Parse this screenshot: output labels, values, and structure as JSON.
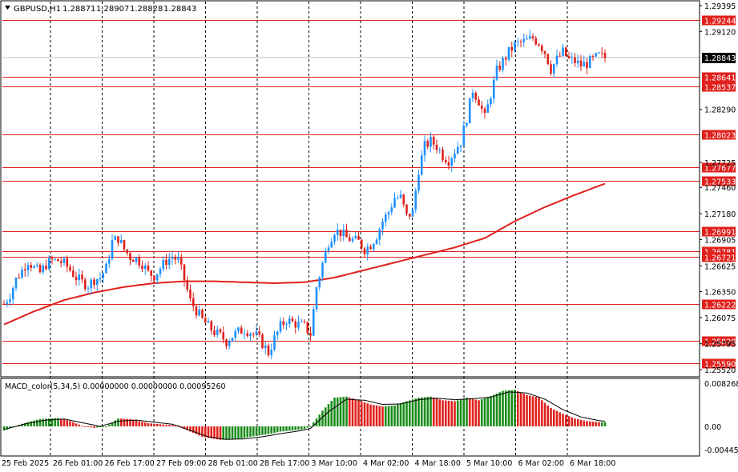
{
  "chart_data": {
    "type": "candlestick",
    "symbol_header": {
      "symbol": "GBPUSD,H1",
      "open": "1.28871",
      "high": "1.28907",
      "low": "1.28828",
      "close": "1.28843"
    },
    "current_price": "1.28843",
    "ylim": [
      1.2552,
      1.29395
    ],
    "price_axis_ticks": [
      "1.29395",
      "1.29120",
      "1.28290",
      "1.27725",
      "1.27460",
      "1.27180",
      "1.26905",
      "1.26625",
      "1.26350",
      "1.26075",
      "1.25795",
      "1.25520"
    ],
    "horizontal_levels": [
      {
        "value": 1.29244,
        "label": "1.29244"
      },
      {
        "value": 1.28641,
        "label": "1.28641"
      },
      {
        "value": 1.28537,
        "label": "1.28537"
      },
      {
        "value": 1.28023,
        "label": "1.28023"
      },
      {
        "value": 1.27677,
        "label": "1.27677"
      },
      {
        "value": 1.27533,
        "label": "1.27533"
      },
      {
        "value": 1.26991,
        "label": "1.26991"
      },
      {
        "value": 1.26781,
        "label": "1.26781"
      },
      {
        "value": 1.26721,
        "label": "1.26721"
      },
      {
        "value": 1.26222,
        "label": "1.26222"
      },
      {
        "value": 1.25828,
        "label": "1.25828"
      },
      {
        "value": 1.2559,
        "label": "1.25590"
      }
    ],
    "time_labels": [
      "25 Feb 2025",
      "26 Feb 01:00",
      "26 Feb 17:00",
      "27 Feb 09:00",
      "28 Feb 01:00",
      "28 Feb 17:00",
      "3 Mar 10:00",
      "4 Mar 02:00",
      "4 Mar 18:00",
      "5 Mar 10:00",
      "6 Mar 02:00",
      "6 Mar 18:00"
    ],
    "price_path": [
      [
        0,
        1.2622
      ],
      [
        2,
        1.2632
      ],
      [
        4,
        1.2648
      ],
      [
        6,
        1.2658
      ],
      [
        8,
        1.2668
      ],
      [
        10,
        1.266
      ],
      [
        12,
        1.2655
      ],
      [
        14,
        1.2664
      ],
      [
        16,
        1.2668
      ],
      [
        18,
        1.2668
      ],
      [
        20,
        1.2665
      ],
      [
        22,
        1.2658
      ],
      [
        24,
        1.265
      ],
      [
        26,
        1.2645
      ],
      [
        28,
        1.2642
      ],
      [
        30,
        1.2648
      ],
      [
        32,
        1.265
      ],
      [
        34,
        1.266
      ],
      [
        36,
        1.2688
      ],
      [
        38,
        1.2692
      ],
      [
        40,
        1.268
      ],
      [
        42,
        1.2672
      ],
      [
        44,
        1.267
      ],
      [
        46,
        1.2665
      ],
      [
        48,
        1.2655
      ],
      [
        50,
        1.2652
      ],
      [
        52,
        1.266
      ],
      [
        54,
        1.2668
      ],
      [
        56,
        1.2672
      ],
      [
        58,
        1.2668
      ],
      [
        60,
        1.2648
      ],
      [
        62,
        1.2625
      ],
      [
        64,
        1.2615
      ],
      [
        66,
        1.2605
      ],
      [
        68,
        1.2598
      ],
      [
        70,
        1.2592
      ],
      [
        72,
        1.2588
      ],
      [
        74,
        1.2582
      ],
      [
        76,
        1.2588
      ],
      [
        78,
        1.2592
      ],
      [
        80,
        1.2595
      ],
      [
        82,
        1.2592
      ],
      [
        84,
        1.2588
      ],
      [
        86,
        1.258
      ],
      [
        88,
        1.257
      ],
      [
        90,
        1.2585
      ],
      [
        92,
        1.2598
      ],
      [
        94,
        1.2605
      ],
      [
        96,
        1.2602
      ],
      [
        98,
        1.26
      ],
      [
        100,
        1.2598
      ],
      [
        102,
        1.259
      ],
      [
        104,
        1.264
      ],
      [
        106,
        1.2665
      ],
      [
        108,
        1.2688
      ],
      [
        110,
        1.27
      ],
      [
        112,
        1.2698
      ],
      [
        114,
        1.2692
      ],
      [
        116,
        1.269
      ],
      [
        118,
        1.2688
      ],
      [
        120,
        1.268
      ],
      [
        122,
        1.2685
      ],
      [
        124,
        1.2695
      ],
      [
        126,
        1.271
      ],
      [
        128,
        1.272
      ],
      [
        130,
        1.2735
      ],
      [
        132,
        1.2735
      ],
      [
        134,
        1.2715
      ],
      [
        136,
        1.272
      ],
      [
        138,
        1.2765
      ],
      [
        140,
        1.279
      ],
      [
        142,
        1.2795
      ],
      [
        144,
        1.279
      ],
      [
        146,
        1.278
      ],
      [
        148,
        1.2775
      ],
      [
        150,
        1.2785
      ],
      [
        152,
        1.2795
      ],
      [
        154,
        1.282
      ],
      [
        156,
        1.285
      ],
      [
        158,
        1.2838
      ],
      [
        160,
        1.282
      ],
      [
        162,
        1.2845
      ],
      [
        164,
        1.287
      ],
      [
        166,
        1.288
      ],
      [
        168,
        1.289
      ],
      [
        170,
        1.2898
      ],
      [
        172,
        1.29
      ],
      [
        174,
        1.2902
      ],
      [
        176,
        1.2905
      ],
      [
        178,
        1.29
      ],
      [
        180,
        1.289
      ],
      [
        182,
        1.2872
      ],
      [
        184,
        1.2882
      ],
      [
        186,
        1.289
      ],
      [
        188,
        1.2882
      ],
      [
        190,
        1.288
      ],
      [
        192,
        1.2876
      ],
      [
        194,
        1.2878
      ],
      [
        196,
        1.2882
      ],
      [
        198,
        1.2886
      ],
      [
        200,
        1.2884
      ]
    ],
    "ma_path": [
      [
        0,
        1.26
      ],
      [
        10,
        1.2614
      ],
      [
        20,
        1.2626
      ],
      [
        30,
        1.2634
      ],
      [
        40,
        1.264
      ],
      [
        50,
        1.2644
      ],
      [
        60,
        1.2646
      ],
      [
        70,
        1.2646
      ],
      [
        80,
        1.2645
      ],
      [
        90,
        1.2644
      ],
      [
        100,
        1.2645
      ],
      [
        110,
        1.265
      ],
      [
        120,
        1.2658
      ],
      [
        130,
        1.2666
      ],
      [
        140,
        1.2674
      ],
      [
        150,
        1.2682
      ],
      [
        160,
        1.2692
      ],
      [
        170,
        1.271
      ],
      [
        180,
        1.2725
      ],
      [
        190,
        1.2738
      ],
      [
        200,
        1.275
      ]
    ],
    "macd": {
      "label": "MACD_color(5,34,5) 0.00000000 0.00000000 0.00095260",
      "ylim": [
        -0.0044588,
        0.0082682
      ],
      "ticks": [
        "0.0082682",
        "0.00",
        "-0.0044588"
      ],
      "histogram_path": [
        [
          0,
          -0.0008
        ],
        [
          6,
          0.0005
        ],
        [
          12,
          0.0014
        ],
        [
          18,
          0.0016
        ],
        [
          22,
          0.001
        ],
        [
          26,
          0.0001
        ],
        [
          30,
          -0.0003
        ],
        [
          34,
          0.0
        ],
        [
          38,
          0.0015
        ],
        [
          42,
          0.0014
        ],
        [
          48,
          0.0006
        ],
        [
          54,
          0.0003
        ],
        [
          58,
          0.0002
        ],
        [
          60,
          -0.0005
        ],
        [
          66,
          -0.002
        ],
        [
          72,
          -0.0026
        ],
        [
          78,
          -0.0024
        ],
        [
          84,
          -0.0018
        ],
        [
          88,
          -0.0015
        ],
        [
          92,
          -0.001
        ],
        [
          96,
          -0.0008
        ],
        [
          100,
          -0.0005
        ],
        [
          102,
          0.0
        ],
        [
          106,
          0.003
        ],
        [
          110,
          0.0055
        ],
        [
          114,
          0.0057
        ],
        [
          118,
          0.005
        ],
        [
          122,
          0.0042
        ],
        [
          126,
          0.0038
        ],
        [
          130,
          0.004
        ],
        [
          134,
          0.0048
        ],
        [
          138,
          0.0055
        ],
        [
          142,
          0.0057
        ],
        [
          146,
          0.005
        ],
        [
          150,
          0.0048
        ],
        [
          154,
          0.0055
        ],
        [
          158,
          0.005
        ],
        [
          162,
          0.0058
        ],
        [
          166,
          0.0068
        ],
        [
          170,
          0.007
        ],
        [
          174,
          0.006
        ],
        [
          178,
          0.0055
        ],
        [
          182,
          0.0035
        ],
        [
          186,
          0.0024
        ],
        [
          190,
          0.0015
        ],
        [
          194,
          0.001
        ],
        [
          198,
          0.0008
        ],
        [
          200,
          0.0008
        ]
      ],
      "signal_path": [
        [
          0,
          -0.0006
        ],
        [
          8,
          0.0006
        ],
        [
          14,
          0.0012
        ],
        [
          20,
          0.0014
        ],
        [
          26,
          0.0007
        ],
        [
          32,
          0.0
        ],
        [
          38,
          0.001
        ],
        [
          44,
          0.0012
        ],
        [
          50,
          0.0008
        ],
        [
          56,
          0.0004
        ],
        [
          62,
          -0.0008
        ],
        [
          68,
          -0.002
        ],
        [
          74,
          -0.0025
        ],
        [
          80,
          -0.0024
        ],
        [
          86,
          -0.002
        ],
        [
          92,
          -0.0014
        ],
        [
          98,
          -0.0009
        ],
        [
          102,
          -0.0004
        ],
        [
          108,
          0.0028
        ],
        [
          114,
          0.0052
        ],
        [
          120,
          0.005
        ],
        [
          126,
          0.0042
        ],
        [
          132,
          0.0043
        ],
        [
          138,
          0.0051
        ],
        [
          144,
          0.0054
        ],
        [
          150,
          0.0051
        ],
        [
          156,
          0.0053
        ],
        [
          162,
          0.0056
        ],
        [
          168,
          0.0066
        ],
        [
          174,
          0.0064
        ],
        [
          180,
          0.0052
        ],
        [
          186,
          0.0032
        ],
        [
          192,
          0.0018
        ],
        [
          198,
          0.0011
        ],
        [
          200,
          0.001
        ]
      ]
    },
    "colors": {
      "bull": "#1e90ff",
      "bear": "#e0201c",
      "ma": "#e0201c",
      "level": "#e0201c",
      "label_bg": "#e0201c",
      "macd_up": "#1a8c1a",
      "macd_down": "#e0201c",
      "signal": "#000000",
      "grid": "#000000"
    }
  }
}
